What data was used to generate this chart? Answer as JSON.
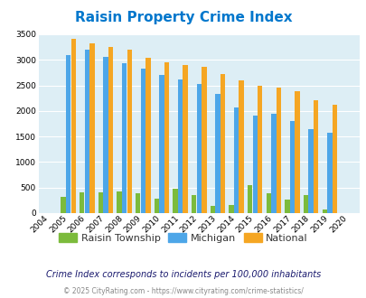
{
  "title": "Raisin Property Crime Index",
  "years": [
    2004,
    2005,
    2006,
    2007,
    2008,
    2009,
    2010,
    2011,
    2012,
    2013,
    2014,
    2015,
    2016,
    2017,
    2018,
    2019,
    2020
  ],
  "raisin": [
    0,
    310,
    400,
    400,
    430,
    390,
    290,
    480,
    350,
    140,
    165,
    540,
    385,
    260,
    355,
    75,
    0
  ],
  "michigan": [
    0,
    3100,
    3200,
    3050,
    2930,
    2830,
    2710,
    2610,
    2530,
    2340,
    2060,
    1910,
    1935,
    1800,
    1640,
    1565,
    0
  ],
  "national": [
    0,
    3410,
    3320,
    3250,
    3190,
    3040,
    2950,
    2900,
    2860,
    2730,
    2590,
    2490,
    2460,
    2380,
    2210,
    2115,
    0
  ],
  "raisin_color": "#7cbb3c",
  "michigan_color": "#4da6e8",
  "national_color": "#f5a623",
  "bg_color": "#ddeef5",
  "grid_color": "#ffffff",
  "title_color": "#0077cc",
  "ylabel_max": 3500,
  "yticks": [
    0,
    500,
    1000,
    1500,
    2000,
    2500,
    3000,
    3500
  ],
  "subtitle": "Crime Index corresponds to incidents per 100,000 inhabitants",
  "footer": "© 2025 CityRating.com - https://www.cityrating.com/crime-statistics/",
  "legend_labels": [
    "Raisin Township",
    "Michigan",
    "National"
  ]
}
